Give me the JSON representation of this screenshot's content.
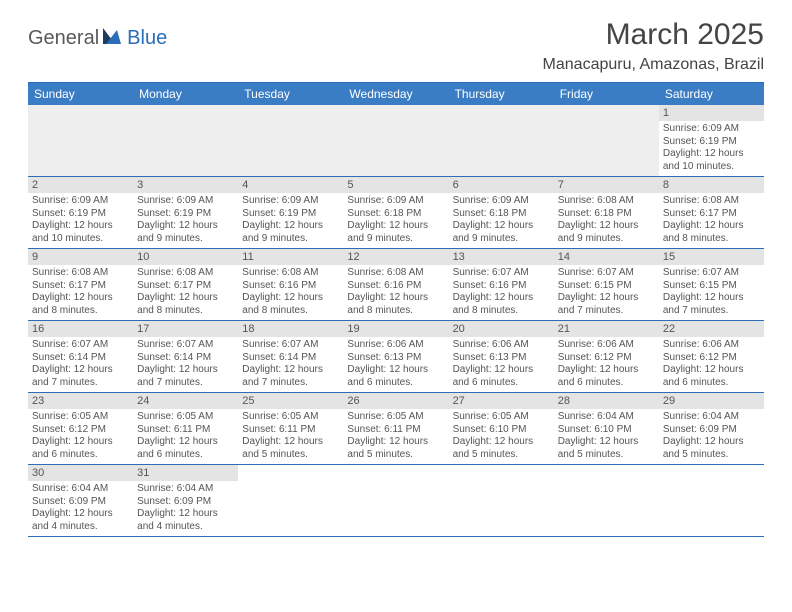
{
  "logo": {
    "part1": "General",
    "part2": "Blue"
  },
  "title": "March 2025",
  "location": "Manacapuru, Amazonas, Brazil",
  "day_headers": [
    "Sunday",
    "Monday",
    "Tuesday",
    "Wednesday",
    "Thursday",
    "Friday",
    "Saturday"
  ],
  "colors": {
    "header_bg": "#3b7dc4",
    "border": "#2a6db8",
    "daynum_bg": "#e4e4e4",
    "text": "#555555"
  },
  "weeks": [
    [
      {
        "empty": true
      },
      {
        "empty": true
      },
      {
        "empty": true
      },
      {
        "empty": true
      },
      {
        "empty": true
      },
      {
        "empty": true
      },
      {
        "n": "1",
        "sr": "Sunrise: 6:09 AM",
        "ss": "Sunset: 6:19 PM",
        "dl1": "Daylight: 12 hours",
        "dl2": "and 10 minutes."
      }
    ],
    [
      {
        "n": "2",
        "sr": "Sunrise: 6:09 AM",
        "ss": "Sunset: 6:19 PM",
        "dl1": "Daylight: 12 hours",
        "dl2": "and 10 minutes."
      },
      {
        "n": "3",
        "sr": "Sunrise: 6:09 AM",
        "ss": "Sunset: 6:19 PM",
        "dl1": "Daylight: 12 hours",
        "dl2": "and 9 minutes."
      },
      {
        "n": "4",
        "sr": "Sunrise: 6:09 AM",
        "ss": "Sunset: 6:19 PM",
        "dl1": "Daylight: 12 hours",
        "dl2": "and 9 minutes."
      },
      {
        "n": "5",
        "sr": "Sunrise: 6:09 AM",
        "ss": "Sunset: 6:18 PM",
        "dl1": "Daylight: 12 hours",
        "dl2": "and 9 minutes."
      },
      {
        "n": "6",
        "sr": "Sunrise: 6:09 AM",
        "ss": "Sunset: 6:18 PM",
        "dl1": "Daylight: 12 hours",
        "dl2": "and 9 minutes."
      },
      {
        "n": "7",
        "sr": "Sunrise: 6:08 AM",
        "ss": "Sunset: 6:18 PM",
        "dl1": "Daylight: 12 hours",
        "dl2": "and 9 minutes."
      },
      {
        "n": "8",
        "sr": "Sunrise: 6:08 AM",
        "ss": "Sunset: 6:17 PM",
        "dl1": "Daylight: 12 hours",
        "dl2": "and 8 minutes."
      }
    ],
    [
      {
        "n": "9",
        "sr": "Sunrise: 6:08 AM",
        "ss": "Sunset: 6:17 PM",
        "dl1": "Daylight: 12 hours",
        "dl2": "and 8 minutes."
      },
      {
        "n": "10",
        "sr": "Sunrise: 6:08 AM",
        "ss": "Sunset: 6:17 PM",
        "dl1": "Daylight: 12 hours",
        "dl2": "and 8 minutes."
      },
      {
        "n": "11",
        "sr": "Sunrise: 6:08 AM",
        "ss": "Sunset: 6:16 PM",
        "dl1": "Daylight: 12 hours",
        "dl2": "and 8 minutes."
      },
      {
        "n": "12",
        "sr": "Sunrise: 6:08 AM",
        "ss": "Sunset: 6:16 PM",
        "dl1": "Daylight: 12 hours",
        "dl2": "and 8 minutes."
      },
      {
        "n": "13",
        "sr": "Sunrise: 6:07 AM",
        "ss": "Sunset: 6:16 PM",
        "dl1": "Daylight: 12 hours",
        "dl2": "and 8 minutes."
      },
      {
        "n": "14",
        "sr": "Sunrise: 6:07 AM",
        "ss": "Sunset: 6:15 PM",
        "dl1": "Daylight: 12 hours",
        "dl2": "and 7 minutes."
      },
      {
        "n": "15",
        "sr": "Sunrise: 6:07 AM",
        "ss": "Sunset: 6:15 PM",
        "dl1": "Daylight: 12 hours",
        "dl2": "and 7 minutes."
      }
    ],
    [
      {
        "n": "16",
        "sr": "Sunrise: 6:07 AM",
        "ss": "Sunset: 6:14 PM",
        "dl1": "Daylight: 12 hours",
        "dl2": "and 7 minutes."
      },
      {
        "n": "17",
        "sr": "Sunrise: 6:07 AM",
        "ss": "Sunset: 6:14 PM",
        "dl1": "Daylight: 12 hours",
        "dl2": "and 7 minutes."
      },
      {
        "n": "18",
        "sr": "Sunrise: 6:07 AM",
        "ss": "Sunset: 6:14 PM",
        "dl1": "Daylight: 12 hours",
        "dl2": "and 7 minutes."
      },
      {
        "n": "19",
        "sr": "Sunrise: 6:06 AM",
        "ss": "Sunset: 6:13 PM",
        "dl1": "Daylight: 12 hours",
        "dl2": "and 6 minutes."
      },
      {
        "n": "20",
        "sr": "Sunrise: 6:06 AM",
        "ss": "Sunset: 6:13 PM",
        "dl1": "Daylight: 12 hours",
        "dl2": "and 6 minutes."
      },
      {
        "n": "21",
        "sr": "Sunrise: 6:06 AM",
        "ss": "Sunset: 6:12 PM",
        "dl1": "Daylight: 12 hours",
        "dl2": "and 6 minutes."
      },
      {
        "n": "22",
        "sr": "Sunrise: 6:06 AM",
        "ss": "Sunset: 6:12 PM",
        "dl1": "Daylight: 12 hours",
        "dl2": "and 6 minutes."
      }
    ],
    [
      {
        "n": "23",
        "sr": "Sunrise: 6:05 AM",
        "ss": "Sunset: 6:12 PM",
        "dl1": "Daylight: 12 hours",
        "dl2": "and 6 minutes."
      },
      {
        "n": "24",
        "sr": "Sunrise: 6:05 AM",
        "ss": "Sunset: 6:11 PM",
        "dl1": "Daylight: 12 hours",
        "dl2": "and 6 minutes."
      },
      {
        "n": "25",
        "sr": "Sunrise: 6:05 AM",
        "ss": "Sunset: 6:11 PM",
        "dl1": "Daylight: 12 hours",
        "dl2": "and 5 minutes."
      },
      {
        "n": "26",
        "sr": "Sunrise: 6:05 AM",
        "ss": "Sunset: 6:11 PM",
        "dl1": "Daylight: 12 hours",
        "dl2": "and 5 minutes."
      },
      {
        "n": "27",
        "sr": "Sunrise: 6:05 AM",
        "ss": "Sunset: 6:10 PM",
        "dl1": "Daylight: 12 hours",
        "dl2": "and 5 minutes."
      },
      {
        "n": "28",
        "sr": "Sunrise: 6:04 AM",
        "ss": "Sunset: 6:10 PM",
        "dl1": "Daylight: 12 hours",
        "dl2": "and 5 minutes."
      },
      {
        "n": "29",
        "sr": "Sunrise: 6:04 AM",
        "ss": "Sunset: 6:09 PM",
        "dl1": "Daylight: 12 hours",
        "dl2": "and 5 minutes."
      }
    ],
    [
      {
        "n": "30",
        "sr": "Sunrise: 6:04 AM",
        "ss": "Sunset: 6:09 PM",
        "dl1": "Daylight: 12 hours",
        "dl2": "and 4 minutes."
      },
      {
        "n": "31",
        "sr": "Sunrise: 6:04 AM",
        "ss": "Sunset: 6:09 PM",
        "dl1": "Daylight: 12 hours",
        "dl2": "and 4 minutes."
      },
      {
        "empty": true
      },
      {
        "empty": true
      },
      {
        "empty": true
      },
      {
        "empty": true
      },
      {
        "empty": true
      }
    ]
  ]
}
